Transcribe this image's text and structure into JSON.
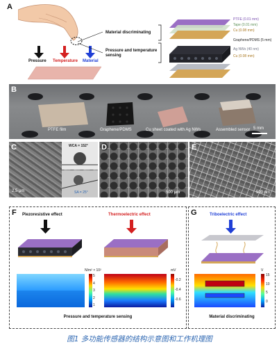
{
  "panels": {
    "A": {
      "letter": "A",
      "pressure": "Pressure",
      "temperature": "Temperature",
      "material": "Material",
      "material_discriminating": "Material discriminating",
      "pressure_temperature_sensing": "Pressure and temperature sensing",
      "layers": [
        "PTFE (0.01 mm)",
        "Tape (0.01 mm)",
        "Cu (0.08 mm)",
        "Graphene/PDMS (5 mm)",
        "Ag NWs (40 nm)",
        "Cu (0.08 mm)"
      ]
    },
    "B": {
      "letter": "B",
      "items": [
        "PTFE film",
        "Graphene/PDMS",
        "Cu sheet coated with Ag NWs",
        "Assembled sensor"
      ],
      "scale": "5 mm"
    },
    "C": {
      "letter": "C",
      "scale": "2.5 μm",
      "wca": "WCA = 152°",
      "sa": "SA = 25°"
    },
    "D": {
      "letter": "D",
      "scale": "500 μm"
    },
    "E": {
      "letter": "E",
      "scale": "500 nm"
    },
    "F": {
      "letter": "F",
      "piezo": "Piezoresistive effect",
      "thermo": "Thermoelectric effect",
      "unit1": "N/m² × 10²",
      "ticks1": [
        "5",
        "4",
        "3",
        "2",
        "1"
      ],
      "unit2": "mV",
      "ticks2": [
        "-0.2",
        "-0.4",
        "-0.6"
      ],
      "caption": "Pressure and temperature sensing",
      "colors": {
        "piezo_arrow": "#111111",
        "thermo_arrow": "#d42020"
      }
    },
    "G": {
      "letter": "G",
      "tribo": "Triboelectric effect",
      "unit": "V",
      "ticks": [
        "15",
        "10",
        "5",
        "0"
      ],
      "caption": "Material discriminating",
      "colors": {
        "tribo_arrow": "#1f3fd6"
      }
    }
  },
  "figure_caption": "图1  多功能传感器的结构示意图和工作机理图",
  "colors": {
    "ptfe": "#9a6fc4",
    "caption": "#2d67b2",
    "pressure_arrow": "#111111",
    "temperature_arrow": "#d42020",
    "material_arrow": "#1f3fd6"
  }
}
